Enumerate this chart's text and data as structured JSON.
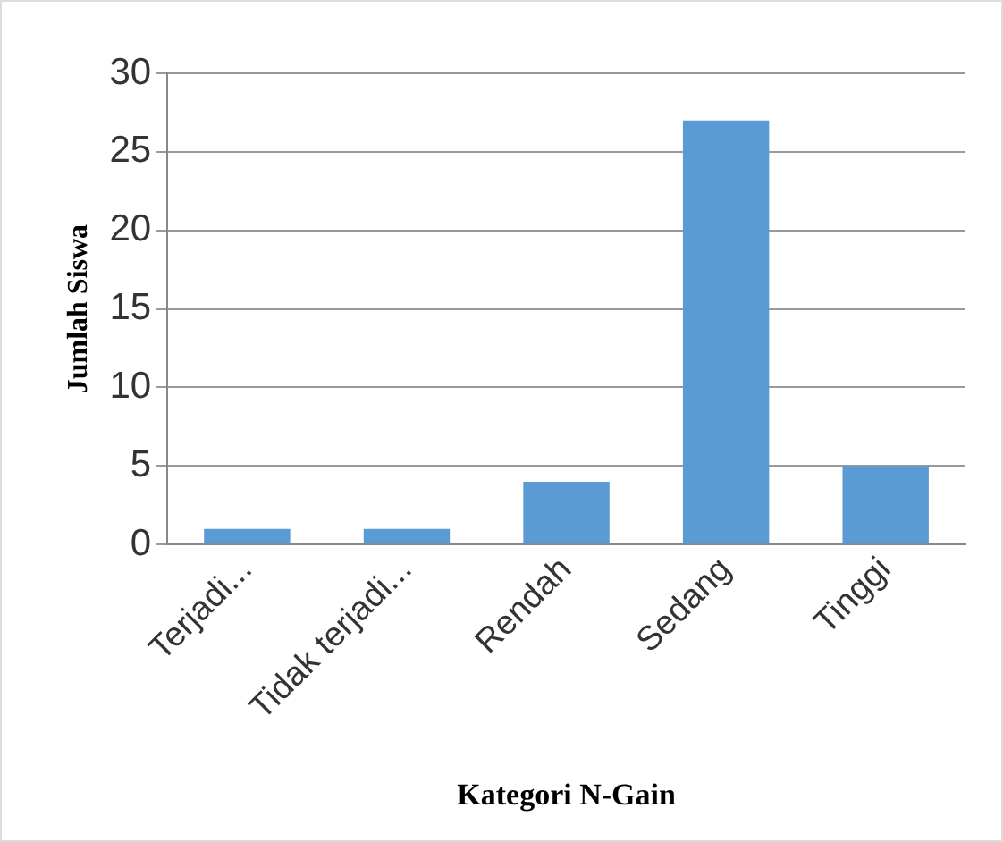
{
  "chart_data": {
    "type": "bar",
    "xlabel": "Kategori N-Gain",
    "ylabel": "Jumlah Siswa",
    "categories": [
      "Terjadi...",
      "Tidak terjadi...",
      "Rendah",
      "Sedang",
      "Tinggi"
    ],
    "values": [
      1,
      1,
      4,
      27,
      5
    ],
    "color": "#5b9bd5",
    "ylim": [
      0,
      30
    ],
    "yticks": [
      0,
      5,
      10,
      15,
      20,
      25,
      30
    ],
    "grid": "y",
    "legend": false
  }
}
